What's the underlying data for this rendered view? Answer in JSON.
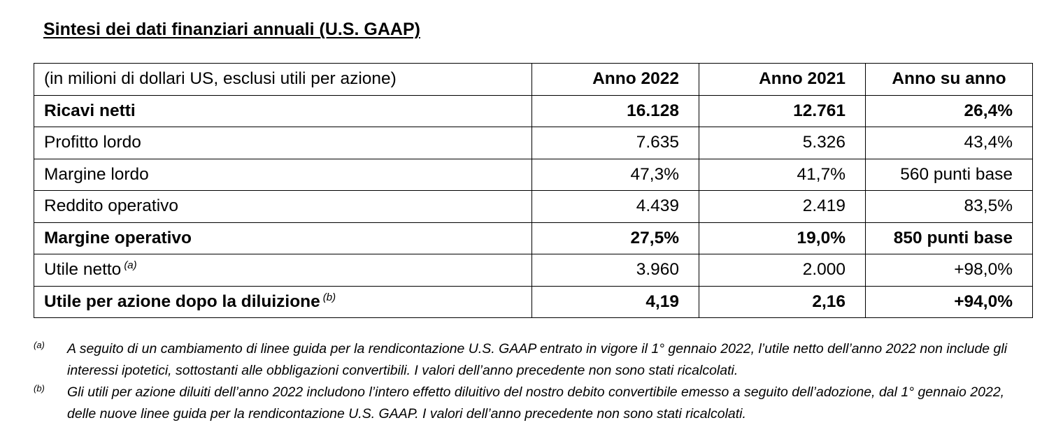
{
  "title": "Sintesi dei dati finanziari annuali (U.S. GAAP)",
  "table": {
    "header": {
      "label": "(in milioni di dollari US, esclusi utili per azione)",
      "col_2022": "Anno 2022",
      "col_2021": "Anno 2021",
      "col_yoy": "Anno su anno"
    },
    "rows": [
      {
        "label": "Ricavi netti",
        "sup": "",
        "v2022": "16.128",
        "v2021": "12.761",
        "yoy": "26,4%",
        "bold": true
      },
      {
        "label": "Profitto lordo",
        "sup": "",
        "v2022": "7.635",
        "v2021": "5.326",
        "yoy": "43,4%",
        "bold": false
      },
      {
        "label": "Margine lordo",
        "sup": "",
        "v2022": "47,3%",
        "v2021": "41,7%",
        "yoy": "560 punti base",
        "bold": false
      },
      {
        "label": "Reddito operativo",
        "sup": "",
        "v2022": "4.439",
        "v2021": "2.419",
        "yoy": "83,5%",
        "bold": false
      },
      {
        "label": "Margine operativo",
        "sup": "",
        "v2022": "27,5%",
        "v2021": "19,0%",
        "yoy": "850 punti base",
        "bold": true
      },
      {
        "label": "Utile netto",
        "sup": "(a)",
        "v2022": "3.960",
        "v2021": "2.000",
        "yoy": "+98,0%",
        "bold": false
      },
      {
        "label": "Utile per azione dopo la diluizione",
        "sup": "(b)",
        "v2022": "4,19",
        "v2021": "2,16",
        "yoy": "+94,0%",
        "bold": true
      }
    ]
  },
  "footnotes": [
    {
      "mark": "(a)",
      "text": "A seguito di un cambiamento di linee guida per la rendicontazione U.S. GAAP entrato in vigore il 1° gennaio 2022, l’utile netto dell’anno 2022 non include gli interessi ipotetici, sottostanti alle obbligazioni convertibili. I valori dell’anno precedente non sono stati ricalcolati."
    },
    {
      "mark": "(b)",
      "text": "Gli utili per azione diluiti dell’anno 2022 includono l’intero effetto diluitivo del nostro debito convertibile emesso a seguito dell’adozione, dal 1° gennaio 2022, delle nuove linee guida per la rendicontazione U.S. GAAP. I valori dell’anno precedente non sono stati ricalcolati."
    }
  ]
}
